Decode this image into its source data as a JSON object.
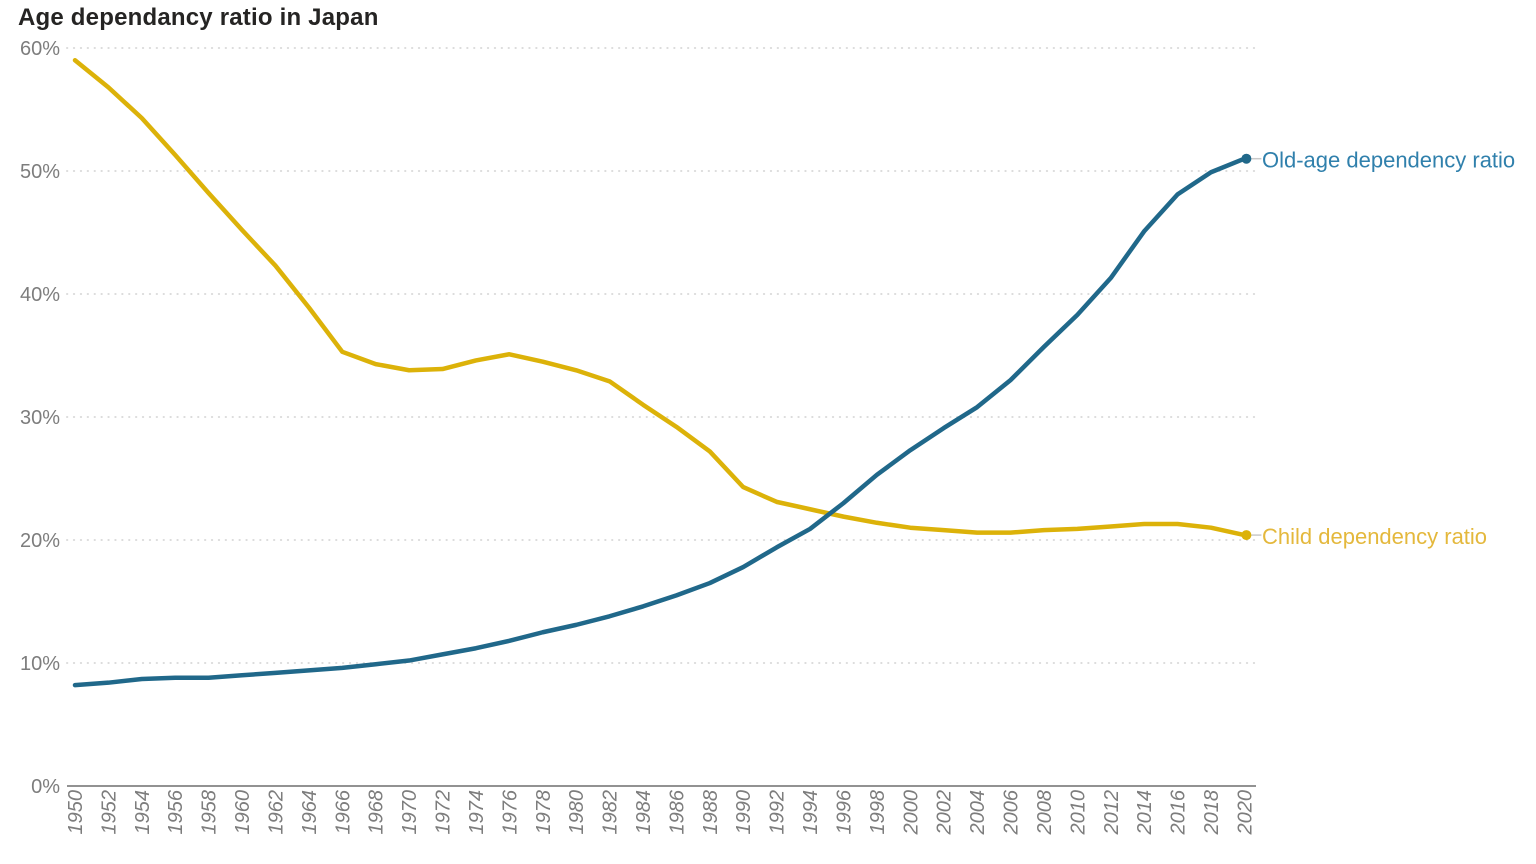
{
  "chart": {
    "title": "Age dependancy ratio in Japan"
  },
  "chart_data": {
    "type": "line",
    "title": "Age dependancy ratio in Japan",
    "xlabel": "",
    "ylabel": "",
    "xlim": [
      1950,
      2020
    ],
    "ylim": [
      0,
      62
    ],
    "grid": "horizontal-dotted",
    "legend": "end-of-line-labels",
    "x": [
      1950,
      1952,
      1954,
      1956,
      1958,
      1960,
      1962,
      1964,
      1966,
      1968,
      1970,
      1972,
      1974,
      1976,
      1978,
      1980,
      1982,
      1984,
      1986,
      1988,
      1990,
      1992,
      1994,
      1996,
      1998,
      2000,
      2002,
      2004,
      2006,
      2008,
      2010,
      2012,
      2014,
      2016,
      2018,
      2020
    ],
    "x_tick_labels": [
      "1950",
      "1952",
      "1954",
      "1956",
      "1958",
      "1960",
      "1962",
      "1964",
      "1966",
      "1968",
      "1970",
      "1972",
      "1974",
      "1976",
      "1978",
      "1980",
      "1982",
      "1984",
      "1986",
      "1988",
      "1990",
      "1992",
      "1994",
      "1996",
      "1998",
      "2000",
      "2002",
      "2004",
      "2006",
      "2008",
      "2010",
      "2012",
      "2014",
      "2016",
      "2018",
      "2020"
    ],
    "y_ticks": [
      0,
      10,
      20,
      30,
      40,
      50,
      60
    ],
    "y_tick_labels": [
      "0%",
      "10%",
      "20%",
      "30%",
      "40%",
      "50%",
      "60%"
    ],
    "series": [
      {
        "name": "Old-age dependency ratio",
        "color": "#20688A",
        "label_color": "#3080AC",
        "values": [
          8.2,
          8.4,
          8.7,
          8.8,
          8.8,
          9.0,
          9.2,
          9.4,
          9.6,
          9.9,
          10.2,
          10.7,
          11.2,
          11.8,
          12.5,
          13.1,
          13.8,
          14.6,
          15.5,
          16.5,
          17.8,
          19.4,
          20.9,
          23.0,
          25.3,
          27.3,
          29.1,
          30.8,
          33.0,
          35.7,
          38.3,
          41.3,
          45.1,
          48.1,
          49.9,
          51.0
        ]
      },
      {
        "name": "Child dependency ratio",
        "color": "#DCB209",
        "label_color": "#E4B83C",
        "values": [
          59.0,
          56.8,
          54.3,
          51.3,
          48.2,
          45.2,
          42.3,
          38.9,
          35.3,
          34.3,
          33.8,
          33.9,
          34.6,
          35.1,
          34.5,
          33.8,
          32.9,
          31.0,
          29.2,
          27.2,
          24.3,
          23.1,
          22.5,
          21.9,
          21.4,
          21.0,
          20.8,
          20.6,
          20.6,
          20.8,
          20.9,
          21.1,
          21.3,
          21.3,
          21.0,
          20.4
        ]
      }
    ],
    "colors": {
      "title": "#252423",
      "axis_text": "#7D7D7D",
      "gridline": "#DBDBDB",
      "axis_line": "#6F6F6F",
      "leader_line": "#C9C9C9",
      "background": "#FFFFFF"
    }
  }
}
